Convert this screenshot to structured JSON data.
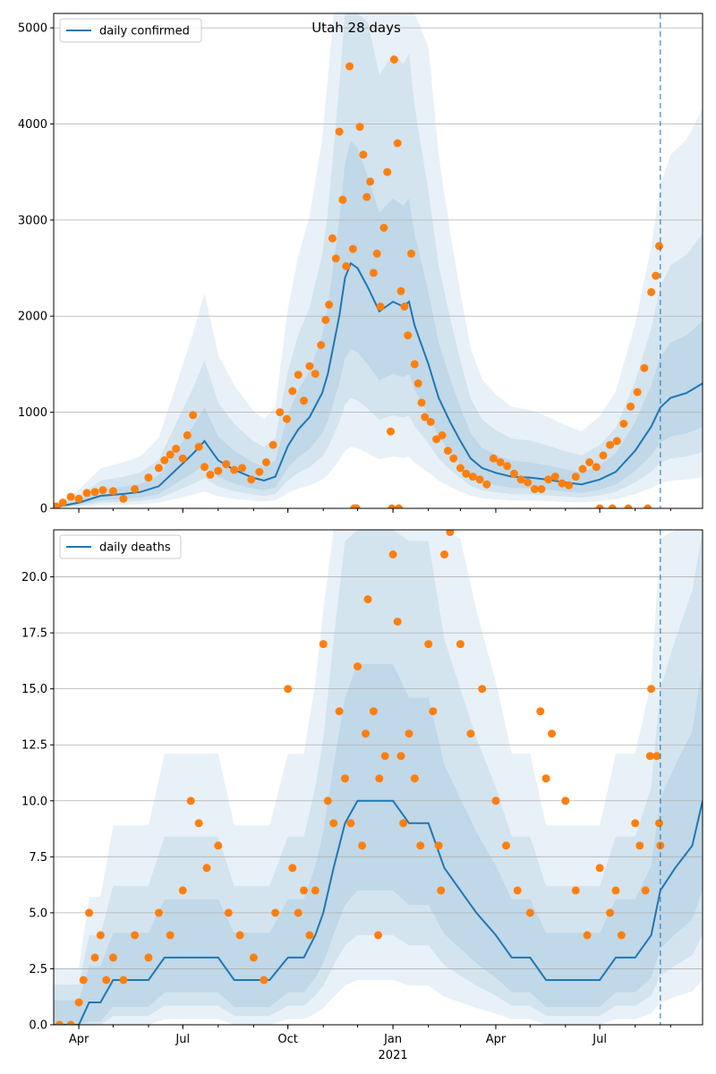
{
  "colors": {
    "line": "#1f77b4",
    "points": "#ff7f0e",
    "band": "#1f77b4",
    "grid": "#b0b0b0",
    "axis": "#000000"
  },
  "chart_data": [
    {
      "type": "line",
      "title": "Utah 28 days",
      "legend": {
        "label": "daily confirmed",
        "placement": "top-left"
      },
      "xlim": [
        "2020-03-10",
        "2021-09-29"
      ],
      "ylim": [
        0,
        5150
      ],
      "yticks": [
        0,
        1000,
        2000,
        3000,
        4000,
        5000
      ],
      "ytick_labels": [
        "0",
        "1000",
        "2000",
        "3000",
        "4000",
        "5000"
      ],
      "grid": "horizontal",
      "vline": "2021-08-23",
      "series": [
        {
          "name": "daily confirmed",
          "x": [
            "2020-03-10",
            "2020-04-01",
            "2020-04-20",
            "2020-05-10",
            "2020-05-25",
            "2020-06-10",
            "2020-06-25",
            "2020-07-10",
            "2020-07-20",
            "2020-08-01",
            "2020-08-15",
            "2020-08-31",
            "2020-09-10",
            "2020-09-20",
            "2020-10-01",
            "2020-10-10",
            "2020-10-20",
            "2020-10-31",
            "2020-11-05",
            "2020-11-10",
            "2020-11-15",
            "2020-11-20",
            "2020-11-25",
            "2020-12-01",
            "2020-12-10",
            "2020-12-20",
            "2021-01-01",
            "2021-01-10",
            "2021-01-15",
            "2021-01-20",
            "2021-02-01",
            "2021-02-10",
            "2021-02-20",
            "2021-03-01",
            "2021-03-10",
            "2021-03-20",
            "2021-04-01",
            "2021-04-15",
            "2021-05-01",
            "2021-05-15",
            "2021-06-01",
            "2021-06-15",
            "2021-07-01",
            "2021-07-15",
            "2021-08-01",
            "2021-08-15",
            "2021-08-23",
            "2021-09-01",
            "2021-09-15",
            "2021-09-29"
          ],
          "y": [
            10,
            60,
            130,
            150,
            170,
            230,
            400,
            570,
            700,
            500,
            400,
            320,
            290,
            330,
            650,
            820,
            950,
            1200,
            1400,
            1700,
            2000,
            2400,
            2550,
            2500,
            2300,
            2050,
            2150,
            2100,
            2150,
            1900,
            1500,
            1150,
            900,
            700,
            520,
            420,
            370,
            330,
            320,
            300,
            270,
            250,
            300,
            380,
            600,
            850,
            1050,
            1150,
            1200,
            1300
          ]
        },
        {
          "name": "points",
          "x": [
            "2020-03-12",
            "2020-03-18",
            "2020-03-25",
            "2020-04-01",
            "2020-04-08",
            "2020-04-15",
            "2020-04-22",
            "2020-05-01",
            "2020-05-10",
            "2020-05-20",
            "2020-06-01",
            "2020-06-10",
            "2020-06-15",
            "2020-06-20",
            "2020-06-25",
            "2020-07-01",
            "2020-07-05",
            "2020-07-10",
            "2020-07-15",
            "2020-07-20",
            "2020-07-25",
            "2020-08-01",
            "2020-08-08",
            "2020-08-15",
            "2020-08-22",
            "2020-08-30",
            "2020-09-06",
            "2020-09-12",
            "2020-09-18",
            "2020-09-24",
            "2020-09-30",
            "2020-10-05",
            "2020-10-10",
            "2020-10-15",
            "2020-10-20",
            "2020-10-25",
            "2020-10-30",
            "2020-11-03",
            "2020-11-06",
            "2020-11-09",
            "2020-11-12",
            "2020-11-15",
            "2020-11-18",
            "2020-11-21",
            "2020-11-24",
            "2020-11-27",
            "2020-11-30",
            "2020-12-03",
            "2020-12-06",
            "2020-12-09",
            "2020-12-12",
            "2020-12-15",
            "2020-12-18",
            "2020-12-21",
            "2020-12-24",
            "2020-12-27",
            "2020-12-30",
            "2021-01-02",
            "2021-01-05",
            "2021-01-08",
            "2021-01-11",
            "2021-01-14",
            "2021-01-17",
            "2021-01-20",
            "2021-01-23",
            "2021-01-26",
            "2021-01-29",
            "2021-02-03",
            "2021-02-08",
            "2021-02-13",
            "2021-02-18",
            "2021-02-23",
            "2021-03-01",
            "2021-03-06",
            "2021-03-12",
            "2021-03-18",
            "2021-03-24",
            "2021-03-30",
            "2021-04-05",
            "2021-04-11",
            "2021-04-17",
            "2021-04-23",
            "2021-04-29",
            "2021-05-05",
            "2021-05-11",
            "2021-05-17",
            "2021-05-23",
            "2021-05-29",
            "2021-06-04",
            "2021-06-10",
            "2021-06-16",
            "2021-06-22",
            "2021-06-28",
            "2021-07-04",
            "2021-07-10",
            "2021-07-16",
            "2021-07-22",
            "2021-07-28",
            "2021-08-03",
            "2021-08-09",
            "2021-08-15",
            "2021-08-19",
            "2021-08-22",
            "2020-11-28",
            "2020-12-31",
            "2021-01-06",
            "2021-07-01",
            "2021-07-12",
            "2021-07-26",
            "2021-08-12"
          ],
          "y": [
            20,
            60,
            120,
            100,
            160,
            170,
            190,
            180,
            100,
            200,
            320,
            420,
            500,
            560,
            620,
            520,
            760,
            970,
            640,
            430,
            350,
            390,
            460,
            400,
            420,
            300,
            380,
            480,
            660,
            1000,
            930,
            1220,
            1390,
            1120,
            1480,
            1400,
            1700,
            1960,
            2120,
            2810,
            2600,
            3920,
            3210,
            2520,
            4600,
            2700,
            0,
            3970,
            3680,
            3240,
            3400,
            2450,
            2650,
            2100,
            2920,
            3500,
            800,
            4670,
            3800,
            2260,
            2100,
            1800,
            2650,
            1500,
            1300,
            1100,
            950,
            900,
            720,
            760,
            600,
            520,
            420,
            360,
            330,
            300,
            250,
            520,
            480,
            440,
            360,
            300,
            270,
            200,
            200,
            300,
            330,
            260,
            240,
            330,
            410,
            480,
            430,
            550,
            660,
            700,
            880,
            1060,
            1210,
            1460,
            2250,
            2420,
            2730,
            0,
            0,
            0,
            0,
            0,
            0,
            0
          ]
        }
      ]
    },
    {
      "type": "line",
      "legend": {
        "label": "daily deaths",
        "placement": "top-left"
      },
      "xlim": [
        "2020-03-10",
        "2021-09-29"
      ],
      "ylim": [
        0,
        22.1
      ],
      "yticks": [
        0,
        2.5,
        5,
        7.5,
        10,
        12.5,
        15,
        17.5,
        20
      ],
      "ytick_labels": [
        "0.0",
        "2.5",
        "5.0",
        "7.5",
        "10.0",
        "12.5",
        "15.0",
        "17.5",
        "20.0"
      ],
      "xticks": [
        "2020-04-01",
        "2020-07-01",
        "2020-10-01",
        "2021-01-01",
        "2021-04-01",
        "2021-07-01"
      ],
      "xtick_labels": [
        "Apr",
        "Jul",
        "Oct",
        "Jan",
        "Apr",
        "Jul"
      ],
      "xlabel_secondary": "2021",
      "grid": "horizontal",
      "vline": "2021-08-23",
      "series": [
        {
          "name": "daily deaths",
          "x": [
            "2020-03-10",
            "2020-04-01",
            "2020-04-10",
            "2020-04-20",
            "2020-05-01",
            "2020-05-15",
            "2020-06-01",
            "2020-06-15",
            "2020-07-01",
            "2020-07-15",
            "2020-08-01",
            "2020-08-15",
            "2020-09-01",
            "2020-09-15",
            "2020-10-01",
            "2020-10-15",
            "2020-10-25",
            "2020-11-01",
            "2020-11-10",
            "2020-11-20",
            "2020-12-01",
            "2020-12-15",
            "2021-01-01",
            "2021-01-15",
            "2021-02-01",
            "2021-02-15",
            "2021-03-01",
            "2021-03-15",
            "2021-04-01",
            "2021-04-15",
            "2021-05-01",
            "2021-05-15",
            "2021-06-01",
            "2021-06-15",
            "2021-07-01",
            "2021-07-15",
            "2021-08-01",
            "2021-08-15",
            "2021-08-23",
            "2021-09-05",
            "2021-09-20",
            "2021-09-29"
          ],
          "y": [
            0,
            0,
            1,
            1,
            2,
            2,
            2,
            3,
            3,
            3,
            3,
            2,
            2,
            2,
            3,
            3,
            4,
            5,
            7,
            9,
            10,
            10,
            10,
            9,
            9,
            7,
            6,
            5,
            4,
            3,
            3,
            2,
            2,
            2,
            2,
            3,
            3,
            4,
            6,
            7,
            8,
            10
          ]
        },
        {
          "name": "points",
          "x": [
            "2020-03-15",
            "2020-03-25",
            "2020-04-01",
            "2020-04-05",
            "2020-04-10",
            "2020-04-15",
            "2020-04-20",
            "2020-04-25",
            "2020-05-01",
            "2020-05-10",
            "2020-05-20",
            "2020-06-01",
            "2020-06-10",
            "2020-06-20",
            "2020-07-01",
            "2020-07-08",
            "2020-07-15",
            "2020-07-22",
            "2020-08-01",
            "2020-08-10",
            "2020-08-20",
            "2020-09-01",
            "2020-09-10",
            "2020-09-20",
            "2020-10-01",
            "2020-10-05",
            "2020-10-10",
            "2020-10-15",
            "2020-10-20",
            "2020-10-25",
            "2020-11-01",
            "2020-11-05",
            "2020-11-10",
            "2020-11-15",
            "2020-11-20",
            "2020-11-25",
            "2020-12-01",
            "2020-12-05",
            "2020-12-10",
            "2020-12-15",
            "2020-12-20",
            "2020-12-25",
            "2021-01-01",
            "2021-01-05",
            "2021-01-10",
            "2021-01-15",
            "2021-01-20",
            "2021-01-25",
            "2021-02-01",
            "2021-02-05",
            "2021-02-10",
            "2021-02-15",
            "2021-02-20",
            "2021-03-01",
            "2021-03-10",
            "2021-03-20",
            "2021-04-01",
            "2021-04-10",
            "2021-04-20",
            "2021-05-01",
            "2021-05-10",
            "2021-05-15",
            "2021-05-20",
            "2021-06-01",
            "2021-06-10",
            "2021-06-20",
            "2021-07-01",
            "2021-07-10",
            "2021-07-20",
            "2021-08-01",
            "2021-08-05",
            "2021-08-10",
            "2021-08-15",
            "2021-08-20",
            "2021-08-22",
            "2021-08-23",
            "2021-02-12",
            "2020-12-19",
            "2021-01-08",
            "2020-12-08",
            "2021-07-15",
            "2021-08-14"
          ],
          "y": [
            0,
            0,
            1,
            2,
            5,
            3,
            4,
            2,
            3,
            2,
            4,
            3,
            5,
            4,
            6,
            10,
            9,
            7,
            8,
            5,
            4,
            3,
            2,
            5,
            15,
            7,
            5,
            6,
            4,
            6,
            17,
            10,
            9,
            14,
            11,
            9,
            16,
            8,
            19,
            14,
            11,
            12,
            21,
            18,
            9,
            13,
            11,
            8,
            17,
            14,
            8,
            21,
            22,
            17,
            13,
            15,
            10,
            8,
            6,
            5,
            14,
            11,
            13,
            10,
            6,
            4,
            7,
            5,
            4,
            9,
            8,
            6,
            15,
            12,
            9,
            8,
            6,
            4,
            12,
            13,
            6,
            12
          ]
        }
      ]
    }
  ]
}
